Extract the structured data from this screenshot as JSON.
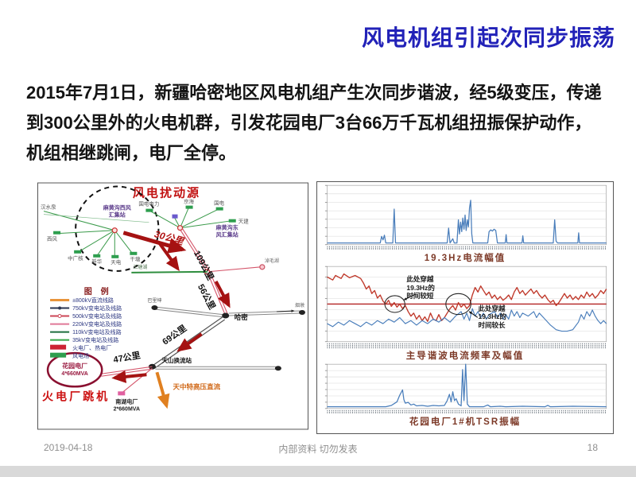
{
  "slide": {
    "title": "风电机组引起次同步振荡",
    "body_lines": [
      "2015年7月1日，新疆哈密地区风电机组产生次同步谐波，经5级变压，传递",
      "到300公里外的火电机群，引发花园电厂3台66万千瓦机组扭振保护动作，",
      "机组相继跳闸，电厂全停。"
    ],
    "footer": {
      "date": "2019-04-18",
      "notice": "内部资料 切勿发表",
      "page": "18"
    }
  },
  "diagram": {
    "figure_title": "风电扰动源",
    "trip_label": "火电厂跳机",
    "hvdc_label": "天中特高压直流",
    "west_hub_line1": "麻黄沟西风",
    "west_hub_line2": "汇集站",
    "east_hub_line1": "麻黄沟东",
    "east_hub_line2": "风汇集站",
    "distances": {
      "d30": "30公里",
      "d109": "109公里",
      "d56": "56公里",
      "d69": "69公里",
      "d47": "47公里"
    },
    "nodes": {
      "hanshuiquan": "汉水泉",
      "xifeng": "西风",
      "zhongguanghe": "中广核",
      "xinhua": "新华",
      "tiandian": "天电",
      "gantang": "干塘",
      "guodiandianli": "国电电力",
      "jinghai": "京海",
      "guodian": "国电",
      "tianjian": "天建",
      "naomaohu": "淖毛湖",
      "santanghu": "三塘湖",
      "balikun": "巴里坤",
      "hami": "哈密",
      "yandun": "烟墩",
      "tianshan": "天山换流站"
    },
    "plants": {
      "garden_name": "花园电厂",
      "garden_capacity": "4*660MVA",
      "nanhu_name": "南湖电厂",
      "nanhu_capacity": "2*660MVA"
    },
    "legend": {
      "title": "图  例",
      "items": [
        {
          "label": "±800kV直流线路",
          "color": "#e8943a"
        },
        {
          "label": "750kV变电站及线路",
          "color": "#2a3450"
        },
        {
          "label": "500kV变电站及线路",
          "color": "#cc4455"
        },
        {
          "label": "220kV变电站及线路",
          "color": "#e07898"
        },
        {
          "label": "110kV变电站及线路",
          "color": "#1e6e3e"
        },
        {
          "label": "35kV变电站及线路",
          "color": "#35a545"
        },
        {
          "label": "火电厂、热电厂",
          "color": "#cc2233"
        },
        {
          "label": "风电场",
          "color": "#2e9e4e"
        }
      ]
    }
  },
  "chart_data": [
    {
      "type": "line",
      "title": "19.3Hz电流幅值",
      "tick_rows": 2,
      "series": [
        {
          "name": "19.3Hz-current-amplitude",
          "color": "#4a7ebb",
          "width": 1.2,
          "points": [
            [
              0,
              3
            ],
            [
              19,
              3
            ],
            [
              19.5,
              14
            ],
            [
              20,
              8
            ],
            [
              20.5,
              16
            ],
            [
              21,
              3
            ],
            [
              23.5,
              3
            ],
            [
              24,
              60
            ],
            [
              24.5,
              3
            ],
            [
              43,
              3
            ],
            [
              43.5,
              28
            ],
            [
              44,
              3
            ],
            [
              45,
              10
            ],
            [
              45.5,
              3
            ],
            [
              46.5,
              3
            ],
            [
              47,
              42
            ],
            [
              47.4,
              18
            ],
            [
              47.8,
              38
            ],
            [
              48.2,
              22
            ],
            [
              48.6,
              45
            ],
            [
              49,
              26
            ],
            [
              49.4,
              50
            ],
            [
              49.8,
              24
            ],
            [
              50.2,
              42
            ],
            [
              50.6,
              30
            ],
            [
              51,
              62
            ],
            [
              51.4,
              75
            ],
            [
              51.8,
              18
            ],
            [
              52.2,
              3
            ],
            [
              57.5,
              3
            ],
            [
              58,
              22
            ],
            [
              58.6,
              25
            ],
            [
              59.2,
              23
            ],
            [
              59.8,
              26
            ],
            [
              60.4,
              24
            ],
            [
              61,
              3
            ],
            [
              63.8,
              3
            ],
            [
              64.1,
              17
            ],
            [
              64.4,
              3
            ],
            [
              69.8,
              3
            ],
            [
              70.1,
              15
            ],
            [
              70.4,
              3
            ],
            [
              81,
              3
            ],
            [
              81.5,
              42
            ],
            [
              82,
              6
            ],
            [
              82.5,
              3
            ],
            [
              89.8,
              3
            ],
            [
              90.1,
              20
            ],
            [
              90.4,
              3
            ],
            [
              100,
              3
            ]
          ]
        }
      ]
    },
    {
      "type": "line",
      "title": "主导谐波电流频率及幅值",
      "tick_rows": 3,
      "threshold": {
        "y_percent": 50,
        "color": "#b22222",
        "value": "19.3Hz"
      },
      "annotations": [
        {
          "text": "此处穿越\n19.3Hz的\n时间较短"
        },
        {
          "text": "此处穿越\n19.3Hz的\n时间较长"
        }
      ],
      "series": [
        {
          "name": "harmonic-frequency-red",
          "color": "#c0392b",
          "width": 1.3,
          "points": [
            [
              0,
              86
            ],
            [
              2,
              82
            ],
            [
              3,
              88
            ],
            [
              5,
              84
            ],
            [
              6,
              90
            ],
            [
              8,
              85
            ],
            [
              10,
              88
            ],
            [
              12,
              84
            ],
            [
              13,
              78
            ],
            [
              14,
              70
            ],
            [
              15,
              74
            ],
            [
              16,
              64
            ],
            [
              17,
              68
            ],
            [
              18,
              58
            ],
            [
              19,
              62
            ],
            [
              20,
              54
            ],
            [
              21,
              50
            ],
            [
              22,
              55
            ],
            [
              23,
              47
            ],
            [
              24,
              52
            ],
            [
              25,
              46
            ],
            [
              26,
              50
            ],
            [
              27,
              44
            ],
            [
              28,
              48
            ],
            [
              29,
              40
            ],
            [
              30,
              34
            ],
            [
              31,
              38
            ],
            [
              32,
              30
            ],
            [
              33,
              35
            ],
            [
              34,
              28
            ],
            [
              35,
              33
            ],
            [
              36,
              27
            ],
            [
              37,
              38
            ],
            [
              38,
              30
            ],
            [
              39,
              28
            ],
            [
              40,
              36
            ],
            [
              41,
              28
            ],
            [
              42,
              32
            ],
            [
              43,
              38
            ],
            [
              44,
              44
            ],
            [
              45,
              48
            ],
            [
              46,
              42
            ],
            [
              47,
              52
            ],
            [
              48,
              46
            ],
            [
              49,
              50
            ],
            [
              50,
              44
            ],
            [
              51,
              48
            ],
            [
              52,
              62
            ],
            [
              53,
              72
            ],
            [
              54,
              66
            ],
            [
              55,
              74
            ],
            [
              56,
              68
            ],
            [
              57,
              62
            ],
            [
              58,
              66
            ],
            [
              59,
              58
            ],
            [
              60,
              62
            ],
            [
              61,
              56
            ],
            [
              62,
              60
            ],
            [
              63,
              55
            ],
            [
              64,
              58
            ],
            [
              65,
              62
            ],
            [
              66,
              56
            ],
            [
              67,
              66
            ],
            [
              68,
              72
            ],
            [
              69,
              64
            ],
            [
              70,
              68
            ],
            [
              71,
              62
            ],
            [
              72,
              66
            ],
            [
              73,
              70
            ],
            [
              74,
              64
            ],
            [
              75,
              68
            ],
            [
              76,
              62
            ],
            [
              77,
              58
            ],
            [
              78,
              62
            ],
            [
              79,
              56
            ],
            [
              80,
              52
            ],
            [
              81,
              55
            ],
            [
              82,
              48
            ],
            [
              83,
              52
            ],
            [
              84,
              58
            ],
            [
              85,
              64
            ],
            [
              86,
              58
            ],
            [
              87,
              62
            ],
            [
              88,
              56
            ],
            [
              89,
              60
            ],
            [
              90,
              56
            ],
            [
              91,
              62
            ],
            [
              92,
              58
            ],
            [
              93,
              66
            ],
            [
              94,
              60
            ],
            [
              95,
              64
            ],
            [
              96,
              58
            ],
            [
              97,
              62
            ],
            [
              98,
              68
            ],
            [
              99,
              64
            ],
            [
              100,
              70
            ]
          ]
        },
        {
          "name": "harmonic-amplitude-blue",
          "color": "#4a7ebb",
          "width": 1.1,
          "points": [
            [
              0,
              24
            ],
            [
              2,
              20
            ],
            [
              4,
              26
            ],
            [
              6,
              22
            ],
            [
              8,
              28
            ],
            [
              10,
              24
            ],
            [
              12,
              20
            ],
            [
              14,
              26
            ],
            [
              16,
              22
            ],
            [
              18,
              28
            ],
            [
              20,
              24
            ],
            [
              22,
              30
            ],
            [
              24,
              26
            ],
            [
              26,
              32
            ],
            [
              28,
              24
            ],
            [
              30,
              28
            ],
            [
              32,
              22
            ],
            [
              34,
              28
            ],
            [
              36,
              24
            ],
            [
              38,
              30
            ],
            [
              40,
              26
            ],
            [
              42,
              32
            ],
            [
              44,
              26
            ],
            [
              46,
              34
            ],
            [
              48,
              40
            ],
            [
              49,
              30
            ],
            [
              50,
              38
            ],
            [
              51,
              28
            ],
            [
              52,
              44
            ],
            [
              53,
              34
            ],
            [
              54,
              40
            ],
            [
              55,
              32
            ],
            [
              56,
              38
            ],
            [
              57,
              30
            ],
            [
              58,
              36
            ],
            [
              60,
              40
            ],
            [
              61,
              32
            ],
            [
              62,
              38
            ],
            [
              63,
              30
            ],
            [
              64,
              36
            ],
            [
              65,
              30
            ],
            [
              66,
              42
            ],
            [
              67,
              34
            ],
            [
              68,
              40
            ],
            [
              69,
              32
            ],
            [
              70,
              38
            ],
            [
              72,
              34
            ],
            [
              74,
              40
            ],
            [
              75,
              32
            ],
            [
              76,
              38
            ],
            [
              78,
              30
            ],
            [
              80,
              22
            ],
            [
              82,
              16
            ],
            [
              84,
              14
            ],
            [
              86,
              14
            ],
            [
              88,
              16
            ],
            [
              90,
              26
            ],
            [
              91,
              36
            ],
            [
              92,
              30
            ],
            [
              93,
              40
            ],
            [
              94,
              34
            ],
            [
              95,
              42
            ],
            [
              96,
              34
            ],
            [
              97,
              28
            ],
            [
              98,
              24
            ],
            [
              99,
              28
            ],
            [
              100,
              24
            ]
          ]
        }
      ]
    },
    {
      "type": "line",
      "title": "花园电厂1#机TSR振幅",
      "tick_rows": 2,
      "series": [
        {
          "name": "tsr-amplitude",
          "color": "#4a7ebb",
          "width": 1.2,
          "points": [
            [
              0,
              4
            ],
            [
              21,
              4
            ],
            [
              23,
              7
            ],
            [
              25,
              15
            ],
            [
              26,
              30
            ],
            [
              27,
              42
            ],
            [
              27.5,
              20
            ],
            [
              28,
              12
            ],
            [
              29,
              14
            ],
            [
              30,
              8
            ],
            [
              31,
              10
            ],
            [
              32,
              6
            ],
            [
              34,
              7
            ],
            [
              36,
              5
            ],
            [
              38,
              7
            ],
            [
              40,
              6
            ],
            [
              42,
              7
            ],
            [
              43,
              18
            ],
            [
              43.8,
              32
            ],
            [
              44.4,
              15
            ],
            [
              45,
              38
            ],
            [
              45.6,
              18
            ],
            [
              46.2,
              22
            ],
            [
              47,
              10
            ],
            [
              48,
              6
            ],
            [
              48.5,
              88
            ],
            [
              49,
              18
            ],
            [
              49.6,
              100
            ],
            [
              50.2,
              10
            ],
            [
              51,
              4
            ],
            [
              56,
              4
            ],
            [
              57.5,
              8
            ],
            [
              58.5,
              4
            ],
            [
              62,
              5
            ],
            [
              64,
              4
            ],
            [
              70,
              5
            ],
            [
              78,
              4
            ],
            [
              79,
              7
            ],
            [
              80,
              4
            ],
            [
              88,
              5
            ],
            [
              100,
              4
            ]
          ]
        }
      ]
    }
  ]
}
